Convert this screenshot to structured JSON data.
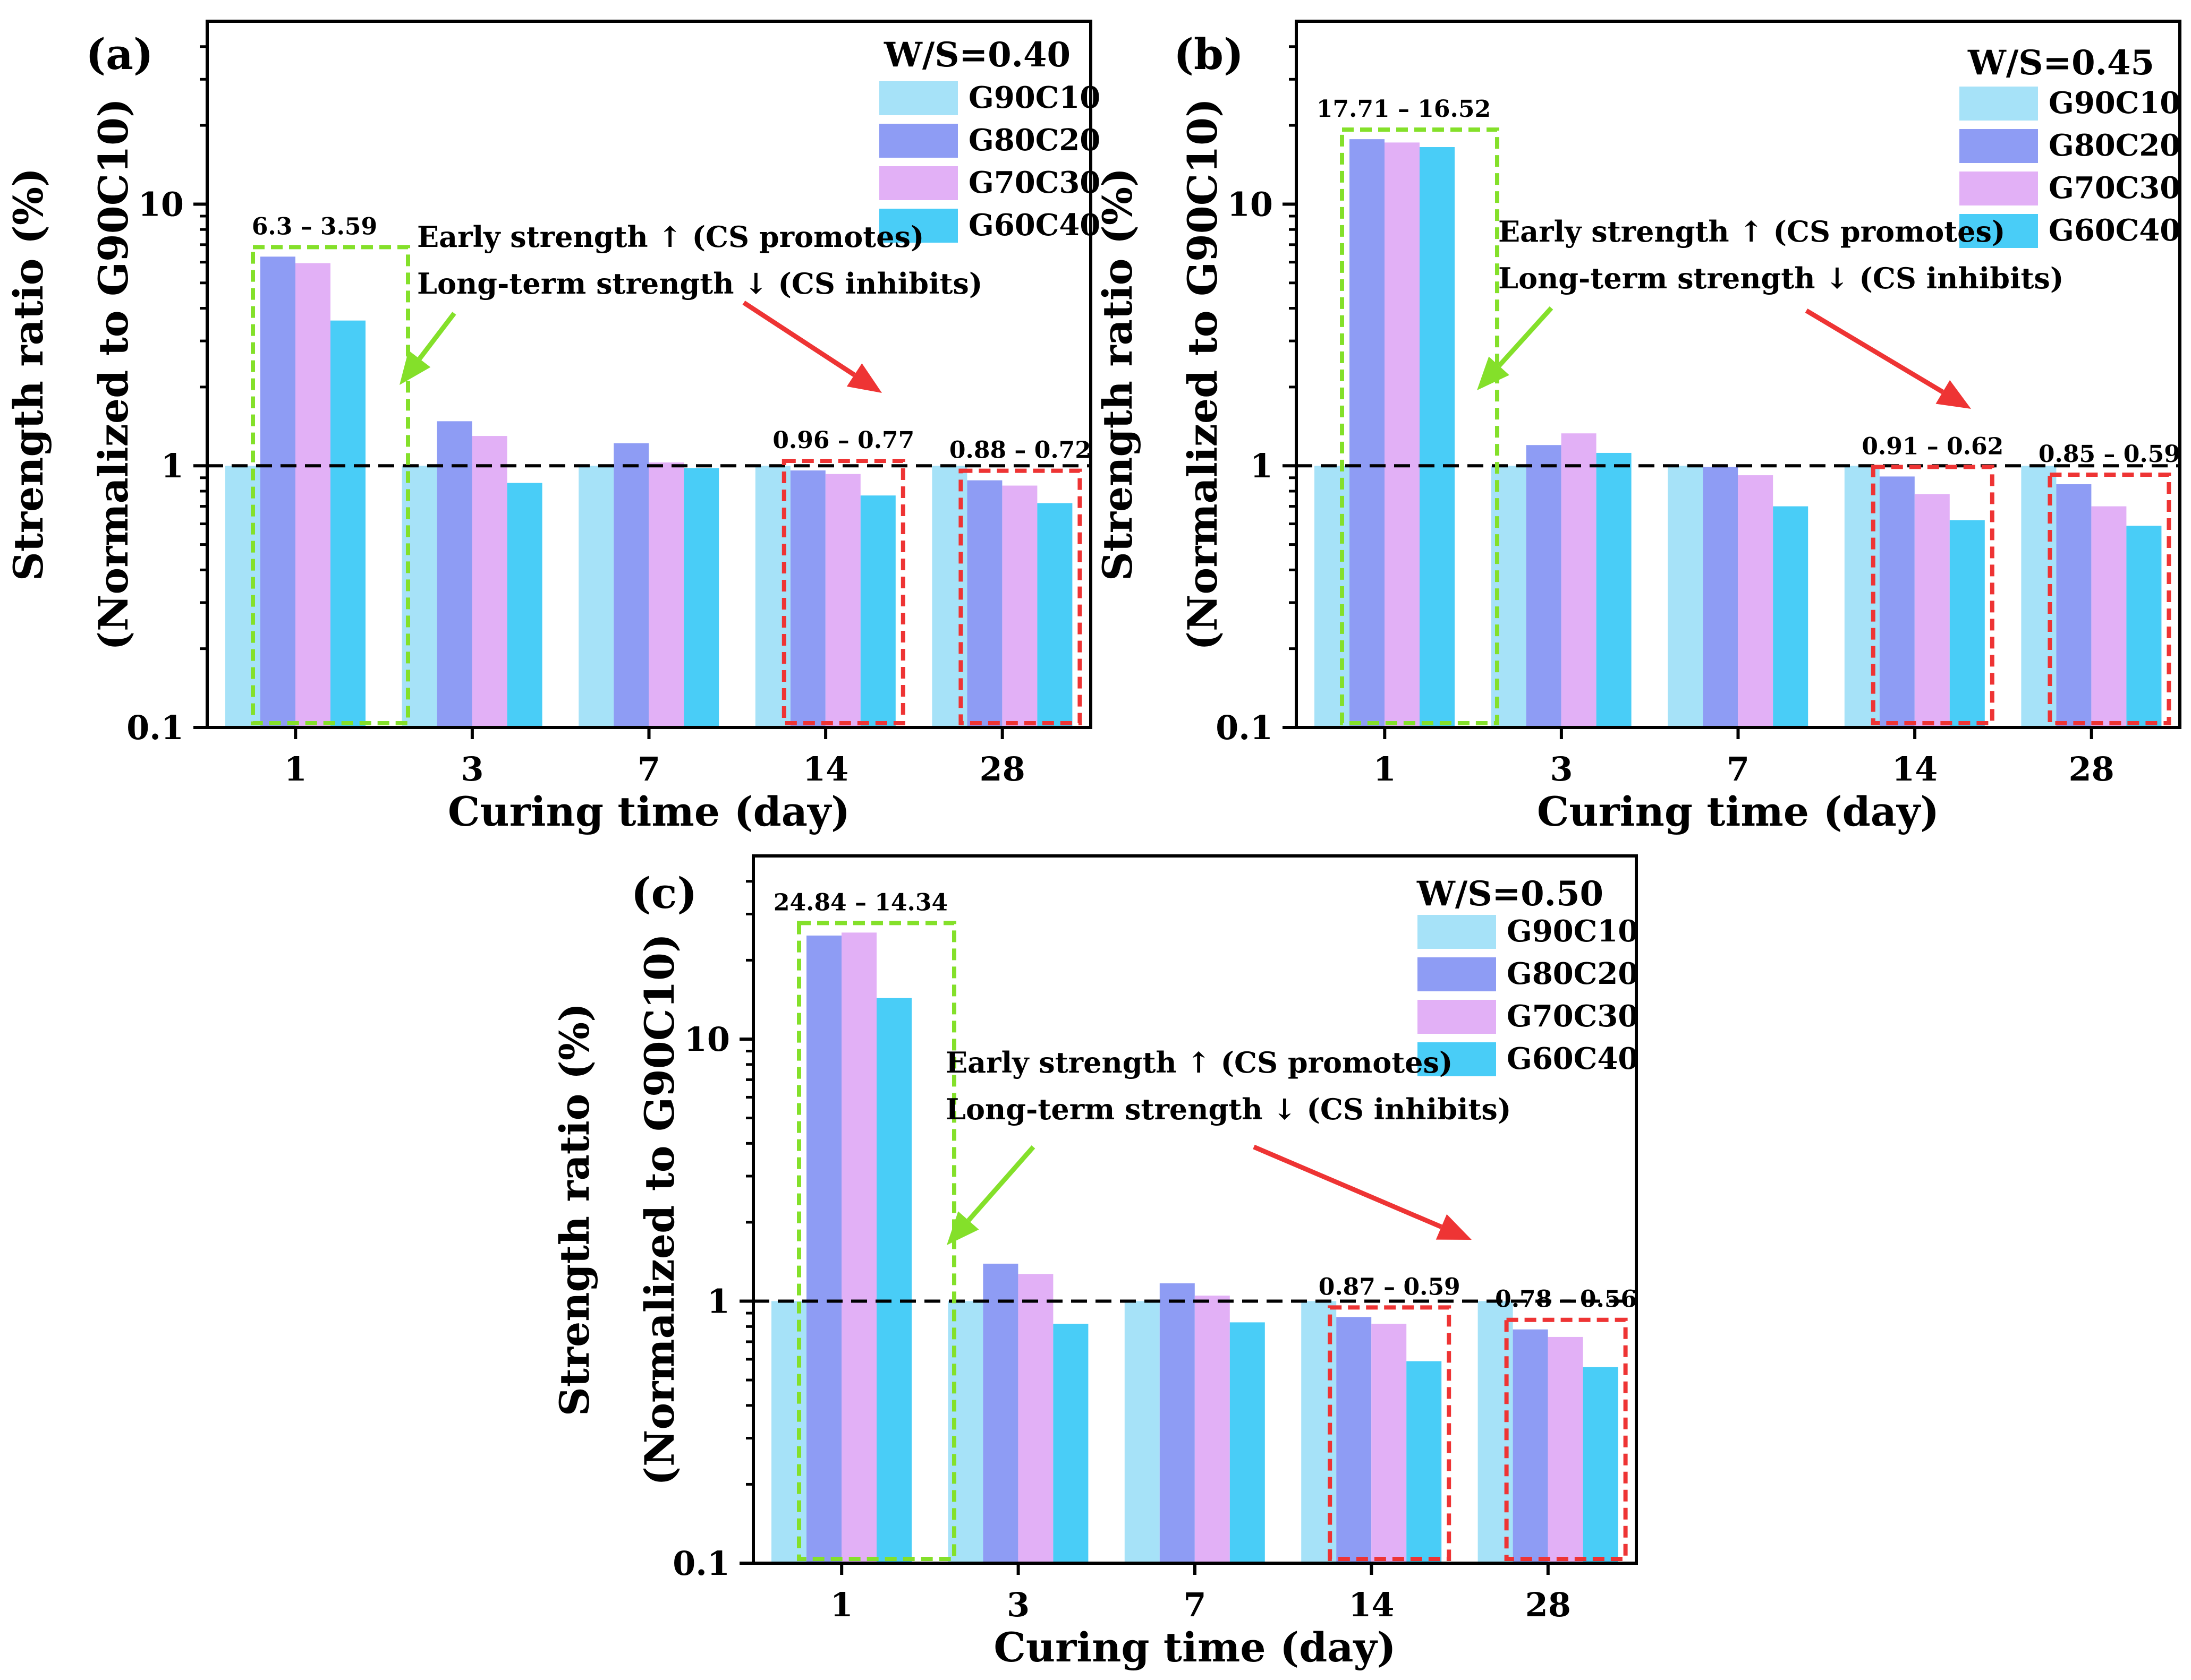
{
  "colors": {
    "series": [
      "#a6e2f8",
      "#8e9cf4",
      "#e2b0f6",
      "#49cdf7"
    ],
    "green_box": "#84e02a",
    "red_box": "#ee3434",
    "green_arrow": "#84e02a",
    "red_arrow": "#ee3434",
    "ref_line": "#000000"
  },
  "chart_data": [
    {
      "panel_label": "(a)",
      "type": "bar",
      "scale": "log",
      "condition": "W/S=0.40",
      "categories": [
        "1",
        "3",
        "7",
        "14",
        "28"
      ],
      "series": [
        {
          "name": "G90C10",
          "values": [
            1,
            1,
            1,
            1,
            1
          ]
        },
        {
          "name": "G80C20",
          "values": [
            6.3,
            1.48,
            1.22,
            0.96,
            0.88
          ]
        },
        {
          "name": "G70C30",
          "values": [
            5.95,
            1.3,
            1.03,
            0.93,
            0.84
          ]
        },
        {
          "name": "G60C40",
          "values": [
            3.59,
            0.86,
            0.98,
            0.77,
            0.72
          ]
        }
      ],
      "xlabel": "Curing time (day)",
      "ylabel_line1": "Strength ratio (%)",
      "ylabel_line2": "(Normalized to G90C10)",
      "ylim": [
        0.1,
        50
      ],
      "yticks": [
        "0.1",
        "1",
        "10"
      ],
      "reference_line": 1,
      "annotation_early": "Early strength ↑ (CS promotes)",
      "annotation_long": "Long-term strength ↓ (CS inhibits)",
      "range_labels": [
        {
          "category": "1",
          "text": "6.3 – 3.59"
        },
        {
          "category": "14",
          "text": "0.96 – 0.77"
        },
        {
          "category": "28",
          "text": "0.88 – 0.72"
        }
      ]
    },
    {
      "panel_label": "(b)",
      "type": "bar",
      "scale": "log",
      "condition": "W/S=0.45",
      "categories": [
        "1",
        "3",
        "7",
        "14",
        "28"
      ],
      "series": [
        {
          "name": "G90C10",
          "values": [
            1,
            1,
            1,
            1,
            1
          ]
        },
        {
          "name": "G80C20",
          "values": [
            17.71,
            1.2,
            0.99,
            0.91,
            0.85
          ]
        },
        {
          "name": "G70C30",
          "values": [
            17.2,
            1.33,
            0.92,
            0.78,
            0.7
          ]
        },
        {
          "name": "G60C40",
          "values": [
            16.52,
            1.12,
            0.7,
            0.62,
            0.59
          ]
        }
      ],
      "xlabel": "Curing time (day)",
      "ylabel_line1": "Strength ratio (%)",
      "ylabel_line2": "(Normalized to G90C10)",
      "ylim": [
        0.1,
        50
      ],
      "yticks": [
        "0.1",
        "1",
        "10"
      ],
      "reference_line": 1,
      "annotation_early": "Early strength ↑ (CS promotes)",
      "annotation_long": "Long-term strength ↓ (CS inhibits)",
      "range_labels": [
        {
          "category": "1",
          "text": "17.71 – 16.52"
        },
        {
          "category": "14",
          "text": "0.91 – 0.62"
        },
        {
          "category": "28",
          "text": "0.85 – 0.59"
        }
      ]
    },
    {
      "panel_label": "(c)",
      "type": "bar",
      "scale": "log",
      "condition": "W/S=0.50",
      "categories": [
        "1",
        "3",
        "7",
        "14",
        "28"
      ],
      "series": [
        {
          "name": "G90C10",
          "values": [
            1,
            1,
            1,
            1,
            1
          ]
        },
        {
          "name": "G80C20",
          "values": [
            24.84,
            1.39,
            1.17,
            0.87,
            0.78
          ]
        },
        {
          "name": "G70C30",
          "values": [
            25.5,
            1.27,
            1.05,
            0.82,
            0.73
          ]
        },
        {
          "name": "G60C40",
          "values": [
            14.34,
            0.82,
            0.83,
            0.59,
            0.56
          ]
        }
      ],
      "xlabel": "Curing time (day)",
      "ylabel_line1": "Strength ratio (%)",
      "ylabel_line2": "(Normalized to G90C10)",
      "ylim": [
        0.1,
        50
      ],
      "yticks": [
        "0.1",
        "1",
        "10"
      ],
      "reference_line": 1,
      "annotation_early": "Early strength ↑ (CS promotes)",
      "annotation_long": "Long-term strength ↓ (CS inhibits)",
      "range_labels": [
        {
          "category": "1",
          "text": "24.84 – 14.34"
        },
        {
          "category": "14",
          "text": "0.87 – 0.59"
        },
        {
          "category": "28",
          "text": "0.78 – 0.56"
        }
      ]
    }
  ]
}
